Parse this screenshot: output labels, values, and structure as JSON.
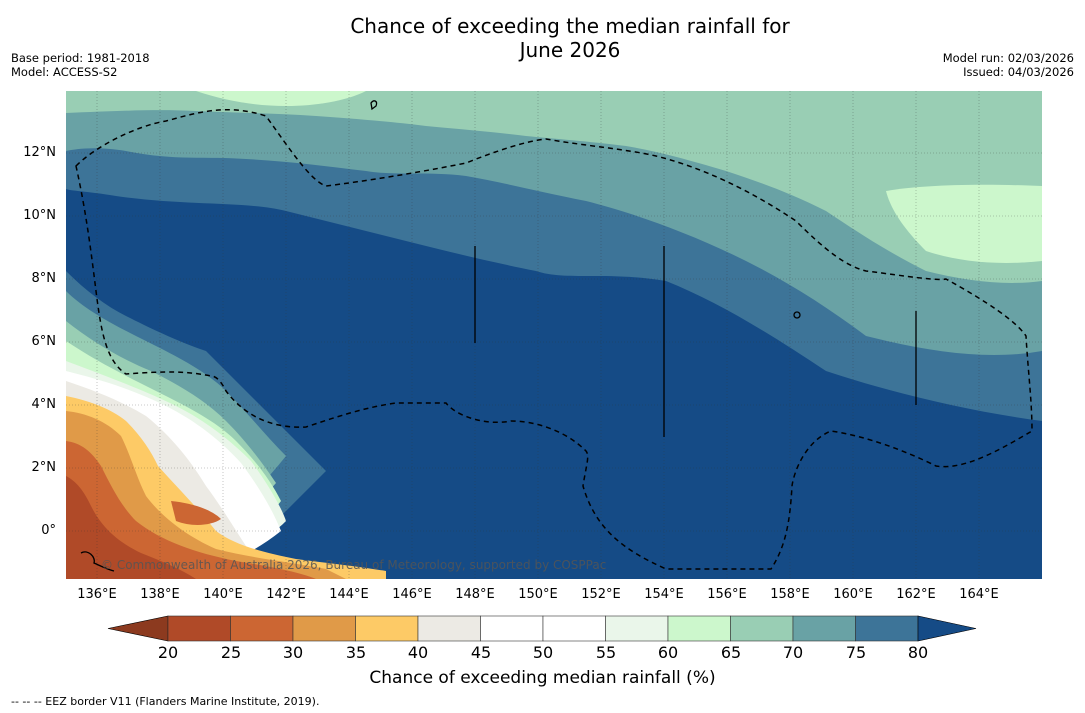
{
  "header": {
    "title_line1": "Chance of exceeding the median rainfall for",
    "title_line2": "June 2026",
    "base_period": "Base period: 1981-2018",
    "model": "Model: ACCESS-S2",
    "model_run": "Model run: 02/03/2026",
    "issued": "Issued: 04/03/2026"
  },
  "map": {
    "x_ticks": [
      "136°E",
      "138°E",
      "140°E",
      "142°E",
      "144°E",
      "146°E",
      "148°E",
      "150°E",
      "152°E",
      "154°E",
      "156°E",
      "158°E",
      "160°E",
      "162°E",
      "164°E"
    ],
    "y_ticks": [
      "12°N",
      "10°N",
      "8°N",
      "6°N",
      "4°N",
      "2°N",
      "0°"
    ],
    "credit": "© Commonwealth of Australia 2026, Bureau of Meteorology, supported by COSPPac"
  },
  "colorbar": {
    "labels": [
      "20",
      "25",
      "30",
      "35",
      "40",
      "45",
      "50",
      "55",
      "60",
      "65",
      "70",
      "75",
      "80"
    ],
    "colors": [
      "#8c3a1f",
      "#b04a28",
      "#cc6633",
      "#e09a48",
      "#fdca66",
      "#eceae4",
      "#ffffff",
      "#ffffff",
      "#eaf6ea",
      "#ccf7cc",
      "#99ceb4",
      "#69a2a5",
      "#3d7498",
      "#154b86"
    ],
    "title": "Chance of exceeding median rainfall (%)"
  },
  "legend": {
    "eez_note": "--  --  -- EEZ border V11 (Flanders Marine Institute, 2019)."
  }
}
